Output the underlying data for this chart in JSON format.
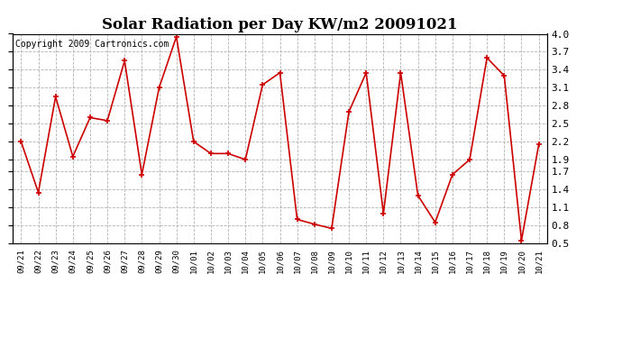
{
  "title": "Solar Radiation per Day KW/m2 20091021",
  "copyright": "Copyright 2009 Cartronics.com",
  "labels": [
    "09/21",
    "09/22",
    "09/23",
    "09/24",
    "09/25",
    "09/26",
    "09/27",
    "09/28",
    "09/29",
    "09/30",
    "10/01",
    "10/02",
    "10/03",
    "10/04",
    "10/05",
    "10/06",
    "10/07",
    "10/08",
    "10/09",
    "10/10",
    "10/11",
    "10/12",
    "10/13",
    "10/14",
    "10/15",
    "10/16",
    "10/17",
    "10/18",
    "10/19",
    "10/20",
    "10/21"
  ],
  "values": [
    2.2,
    1.35,
    2.95,
    1.95,
    2.6,
    2.55,
    3.55,
    1.65,
    3.1,
    3.95,
    2.2,
    2.0,
    2.0,
    1.9,
    3.15,
    3.35,
    0.9,
    0.82,
    0.75,
    2.7,
    3.35,
    1.0,
    3.35,
    1.3,
    0.85,
    1.65,
    1.9,
    3.6,
    3.3,
    0.55,
    2.15
  ],
  "line_color": "#cc0000",
  "marker": "+",
  "marker_size": 5,
  "ylim": [
    0.5,
    4.0
  ],
  "yticks": [
    0.5,
    0.8,
    1.1,
    1.4,
    1.7,
    1.9,
    2.2,
    2.5,
    2.8,
    3.1,
    3.4,
    3.7,
    4.0
  ],
  "bg_color": "#ffffff",
  "grid_color": "#aaaaaa",
  "title_fontsize": 12,
  "copyright_fontsize": 7
}
